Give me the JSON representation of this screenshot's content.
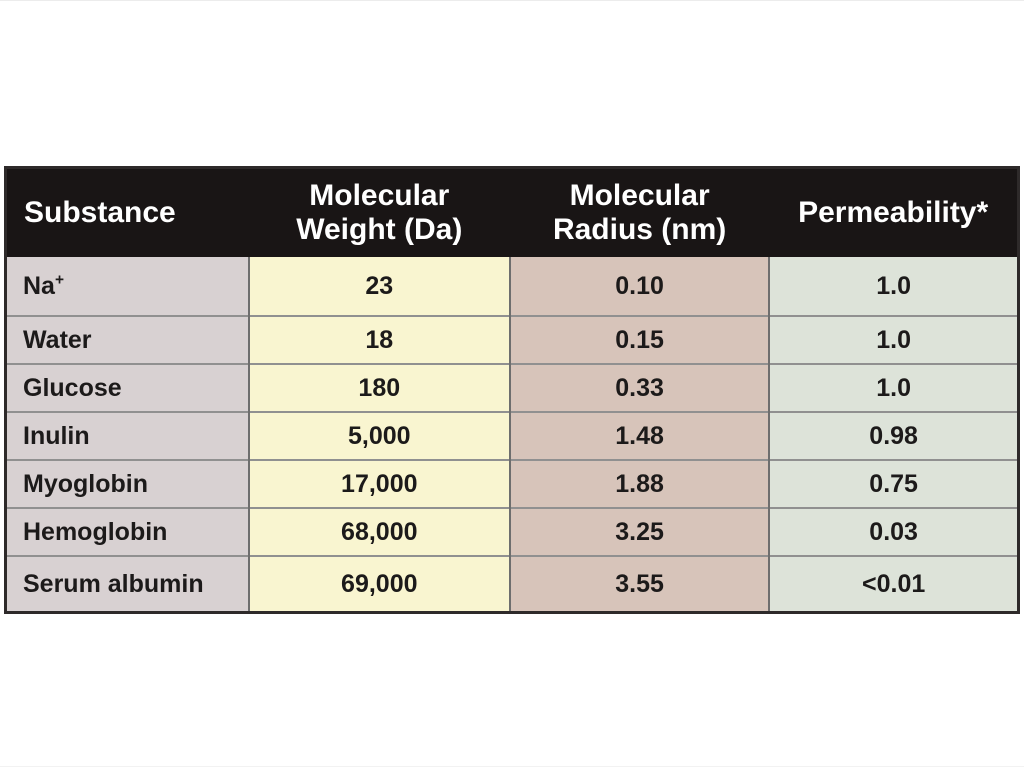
{
  "chart_data": {
    "type": "table",
    "columns": [
      "Substance",
      "Molecular Weight (Da)",
      "Molecular Radius (nm)",
      "Permeability*"
    ],
    "header_lines": [
      [
        "Substance"
      ],
      [
        "Molecular",
        "Weight (Da)"
      ],
      [
        "Molecular",
        "Radius (nm)"
      ],
      [
        "Permeability*"
      ]
    ],
    "rows": [
      {
        "substance": "Na",
        "substance_superscript": "+",
        "molecular_weight_da": "23",
        "molecular_radius_nm": "0.10",
        "permeability": "1.0"
      },
      {
        "substance": "Water",
        "molecular_weight_da": "18",
        "molecular_radius_nm": "0.15",
        "permeability": "1.0"
      },
      {
        "substance": "Glucose",
        "molecular_weight_da": "180",
        "molecular_radius_nm": "0.33",
        "permeability": "1.0"
      },
      {
        "substance": "Inulin",
        "molecular_weight_da": "5,000",
        "molecular_radius_nm": "1.48",
        "permeability": "0.98"
      },
      {
        "substance": "Myoglobin",
        "molecular_weight_da": "17,000",
        "molecular_radius_nm": "1.88",
        "permeability": "0.75"
      },
      {
        "substance": "Hemoglobin",
        "molecular_weight_da": "68,000",
        "molecular_radius_nm": "3.25",
        "permeability": "0.03"
      },
      {
        "substance": "Serum albumin",
        "molecular_weight_da": "69,000",
        "molecular_radius_nm": "3.55",
        "permeability": "<0.01"
      }
    ]
  },
  "colors": {
    "page-bg": "#ffffff",
    "header-bg": "#191515",
    "header-text": "#ffffff",
    "col-substance": "#d8d1d2",
    "col-weight": "#f9f5d0",
    "col-radius": "#d7c4ba",
    "col-permeability": "#dde3d9",
    "row-divider": "#909090",
    "column-divider": "#6e6e6e",
    "table-border": "#2e2a2a",
    "cell-text": "#1c1a1a"
  }
}
